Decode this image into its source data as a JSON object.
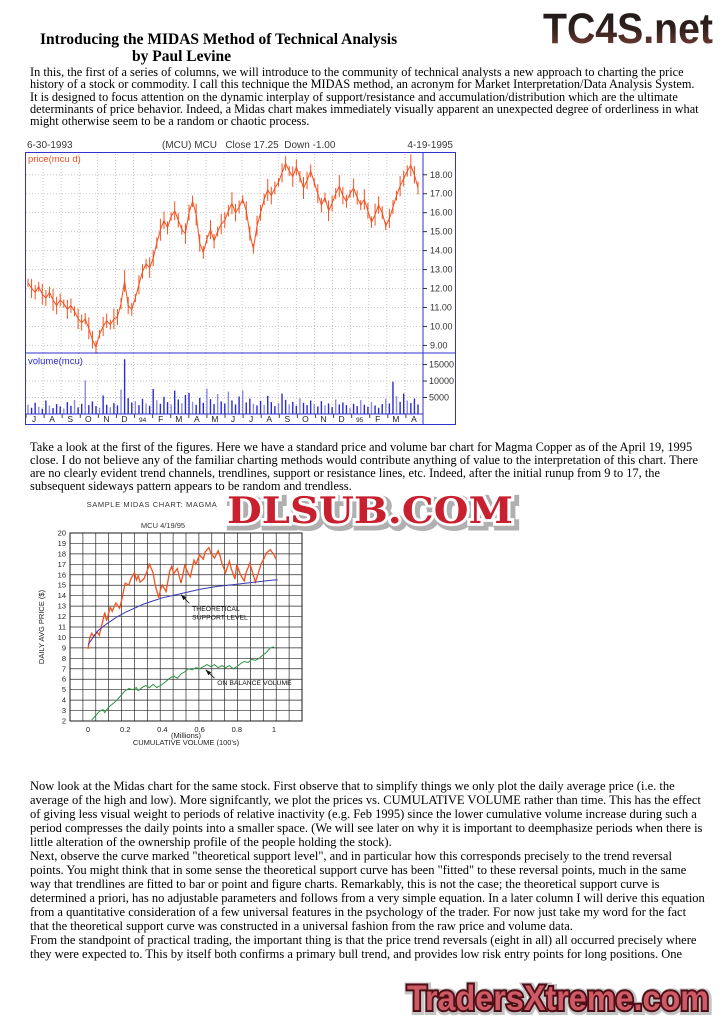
{
  "header": {
    "title": "Introducing the MIDAS Method of Technical Analysis",
    "byline": "by Paul Levine"
  },
  "logos": {
    "top": "TC4S.net",
    "watermark": "DLSUB.COM",
    "bottom": "TradersXtreme.com"
  },
  "paragraphs": {
    "p1": "In this, the first of a series of columns, we will introduce to the community of technical analysts a new approach to charting the price history of a stock or commodity. I call this technique the MIDAS method, an acronym for Market Interpretation/Data Analysis System. It is designed to focus attention on the dynamic interplay of support/resistance and accumulation/distribution which are the ultimate determinants of price behavior. Indeed, a Midas chart makes immediately visually apparent an unexpected degree of orderliness in what might otherwise seem to be a random or chaotic process.",
    "p2": "Take a look at the first of the figures. Here we have a standard price and volume bar chart for Magma Copper as of the April 19, 1995 close. I do not believe any of the familiar charting methods would contribute anything of value to the interpretation of this chart. There are no clearly evident trend channels, trendlines, support or resistance lines, etc. Indeed, after the initial runup from 9 to 17, the subsequent sideways pattern appears to be random and trendless.",
    "p3": "Now look at the Midas chart for the same stock. First observe that to simplify things we only plot the daily average price (i.e. the average of the high and low). More signifcantly, we plot the prices vs. CUMULATIVE VOLUME rather than time. This has the effect of giving less visual weight to periods of relative inactivity (e.g. Feb 1995) since the lower cumulative volume increase during such a period compresses the daily points into a smaller space. (We will see later on why it is important to deemphasize periods when there is little alteration of the ownership profile of the people holding the stock).",
    "p4": "Next, observe the curve marked \"theoretical support level\", and in particular how this corresponds precisely to the trend reversal points. You might think that in some sense the theoretical support curve has been \"fitted\" to these reversal points, much in the same way that trendlines are fitted to bar or point and figure charts. Remarkably, this is not the case; the theoretical support curve is determined a priori, has no adjustable parameters and follows from a very simple equation. In a later column I will derive this equation from a quantitative consideration of a few universal features in the psychology of the trader. For now just take my word for the fact that the theoretical support curve was constructed in a universal fashion from the raw price and  volume data.",
    "p5": "From the standpoint of practical trading, the important thing is that the price trend reversals (eight in all) all occurred precisely where they were expected to. This by itself both confirms a primary bull trend, and provides low risk entry points for long positions. One"
  },
  "chart_data": [
    {
      "type": "bar",
      "header_left": "6-30-1993",
      "header_center": "(MCU) MCU   Close 17.25  Down -1.00",
      "header_right": "4-19-1995",
      "price_label": "price(mcu d)",
      "volume_label": "volume(mcu)",
      "price_axis_ticks": [
        "18.00",
        "17.00",
        "16.00",
        "15.00",
        "14.00",
        "13.00",
        "12.00",
        "11.00",
        "10.00",
        "9.00"
      ],
      "volume_axis_ticks": [
        "15000",
        "10000",
        "5000"
      ],
      "x_labels": [
        "J",
        "A",
        "S",
        "O",
        "N",
        "D",
        "94",
        "F",
        "M",
        "A",
        "M",
        "J",
        "J",
        "A",
        "S",
        "O",
        "N",
        "D",
        "95",
        "F",
        "M",
        "A"
      ],
      "price_ylim": [
        8.6,
        19.2
      ],
      "volume_ylim": [
        0,
        18500
      ],
      "colors": {
        "price": "#f4511e",
        "volume": "#2b2bd0",
        "frame": "#3232cf",
        "grid": "#c9c9c9"
      },
      "price": [
        12.3,
        12.0,
        11.8,
        12.1,
        11.7,
        11.5,
        11.8,
        11.4,
        11.1,
        11.4,
        11.2,
        10.9,
        11.1,
        10.8,
        10.4,
        10.2,
        10.4,
        9.9,
        9.3,
        8.9,
        9.6,
        10.0,
        10.3,
        10.1,
        10.4,
        10.5,
        11.2,
        12.4,
        11.1,
        10.9,
        11.5,
        12.2,
        12.9,
        13.3,
        13.1,
        13.6,
        14.4,
        15.1,
        15.6,
        15.2,
        15.8,
        16.1,
        15.6,
        15.1,
        14.9,
        16.0,
        16.6,
        15.9,
        14.4,
        13.9,
        14.6,
        15.1,
        14.5,
        15.0,
        15.4,
        15.6,
        16.1,
        16.5,
        16.0,
        16.3,
        16.7,
        16.1,
        14.9,
        14.1,
        15.3,
        16.0,
        16.7,
        17.2,
        16.9,
        17.3,
        17.6,
        18.1,
        18.6,
        18.2,
        17.9,
        18.4,
        17.9,
        17.3,
        17.7,
        18.2,
        17.6,
        17.0,
        16.4,
        16.8,
        16.1,
        16.5,
        17.0,
        17.4,
        16.9,
        16.6,
        17.0,
        17.3,
        16.8,
        16.4,
        16.7,
        16.1,
        15.5,
        15.9,
        16.4,
        16.0,
        15.3,
        15.7,
        16.3,
        16.9,
        17.4,
        17.8,
        18.2,
        18.5,
        18.0,
        17.3
      ],
      "volume": [
        2800,
        1900,
        3400,
        2200,
        1600,
        4100,
        2600,
        1800,
        3000,
        2300,
        1700,
        3600,
        2500,
        4300,
        2000,
        3100,
        10200,
        2700,
        3800,
        2400,
        1900,
        5600,
        2800,
        2100,
        3300,
        2600,
        7400,
        16600,
        4800,
        3500,
        3900,
        2700,
        4600,
        3200,
        2500,
        7600,
        4200,
        3100,
        5200,
        3600,
        2900,
        7100,
        4400,
        3300,
        5800,
        6400,
        3700,
        2800,
        4900,
        3400,
        7700,
        4500,
        3000,
        6100,
        3800,
        3200,
        6800,
        4100,
        2900,
        5300,
        7200,
        3500,
        4700,
        3100,
        2600,
        4000,
        2800,
        5500,
        3600,
        2400,
        3300,
        6200,
        4300,
        2900,
        3700,
        2500,
        4800,
        3400,
        2700,
        4100,
        3000,
        2300,
        3900,
        2600,
        3200,
        2100,
        4400,
        2900,
        3500,
        2700,
        1800,
        3100,
        2400,
        4200,
        2800,
        2200,
        3600,
        2600,
        1900,
        3000,
        4600,
        3200,
        9800,
        5400,
        3700,
        6200,
        4100,
        3300,
        4700,
        2900
      ]
    },
    {
      "type": "line",
      "title": "SAMPLE MIDAS CHART: MAGMA",
      "subtitle": "MCU   4/19/95",
      "ylabel": "DAILY AVG PRICE ($)",
      "xlabel_line1": "(Millions)",
      "xlabel_line2": "CUMULATIVE VOLUME (100's)",
      "xlim": [
        -0.097,
        1.151
      ],
      "ylim": [
        2,
        20
      ],
      "x_ticks": [
        0,
        0.2,
        0.4,
        0.6,
        0.8,
        1
      ],
      "y_ticks": [
        20,
        19,
        18,
        17,
        16,
        15,
        14,
        13,
        12,
        11,
        10,
        9,
        8,
        7,
        6,
        5,
        4,
        3,
        2
      ],
      "series": [
        {
          "name": "daily average price",
          "color": "#f4511e",
          "width": 1.3,
          "x": [
            0.0,
            0.01,
            0.02,
            0.03,
            0.05,
            0.06,
            0.08,
            0.09,
            0.1,
            0.12,
            0.13,
            0.15,
            0.17,
            0.18,
            0.2,
            0.22,
            0.23,
            0.25,
            0.26,
            0.27,
            0.28,
            0.3,
            0.31,
            0.33,
            0.35,
            0.36,
            0.38,
            0.39,
            0.4,
            0.42,
            0.44,
            0.45,
            0.46,
            0.48,
            0.5,
            0.51,
            0.52,
            0.54,
            0.55,
            0.57,
            0.58,
            0.6,
            0.62,
            0.63,
            0.65,
            0.66,
            0.68,
            0.7,
            0.71,
            0.72,
            0.74,
            0.76,
            0.77,
            0.79,
            0.8,
            0.82,
            0.84,
            0.85,
            0.87,
            0.88,
            0.9,
            0.92,
            0.93,
            0.95,
            0.96,
            0.98,
            1.0,
            1.01
          ],
          "y": [
            8.9,
            10.0,
            10.4,
            10.1,
            10.5,
            10.2,
            11.6,
            12.4,
            11.6,
            12.9,
            12.5,
            13.3,
            12.8,
            13.5,
            15.2,
            15.0,
            15.6,
            16.2,
            15.5,
            15.9,
            15.3,
            15.6,
            16.0,
            17.0,
            16.2,
            15.1,
            13.8,
            14.6,
            15.0,
            14.4,
            16.4,
            16.8,
            16.1,
            16.6,
            15.2,
            16.0,
            16.9,
            16.1,
            15.8,
            17.4,
            17.0,
            17.9,
            17.5,
            18.2,
            18.6,
            18.1,
            17.6,
            18.3,
            17.8,
            17.1,
            16.2,
            17.3,
            16.6,
            15.6,
            17.0,
            16.0,
            15.4,
            16.2,
            17.1,
            16.5,
            15.3,
            16.4,
            17.0,
            17.7,
            18.1,
            18.4,
            17.9,
            17.5
          ]
        },
        {
          "name": "theoretical support level",
          "color": "#3a3ab2",
          "width": 1,
          "x": [
            0.0,
            0.05,
            0.1,
            0.15,
            0.2,
            0.25,
            0.3,
            0.35,
            0.4,
            0.45,
            0.5,
            0.55,
            0.6,
            0.65,
            0.7,
            0.75,
            0.8,
            0.85,
            0.9,
            0.95,
            1.0,
            1.02
          ],
          "y": [
            9.3,
            10.6,
            11.3,
            11.9,
            12.4,
            12.8,
            13.2,
            13.5,
            13.8,
            14.0,
            14.2,
            14.4,
            14.6,
            14.75,
            14.9,
            15.0,
            15.1,
            15.2,
            15.3,
            15.4,
            15.5,
            15.5
          ]
        },
        {
          "name": "on balance volume",
          "color": "#2f9342",
          "width": 1,
          "x": [
            0.02,
            0.04,
            0.06,
            0.08,
            0.09,
            0.11,
            0.13,
            0.15,
            0.17,
            0.19,
            0.2,
            0.22,
            0.24,
            0.26,
            0.27,
            0.29,
            0.31,
            0.33,
            0.35,
            0.37,
            0.38,
            0.4,
            0.42,
            0.44,
            0.46,
            0.48,
            0.5,
            0.52,
            0.54,
            0.56,
            0.58,
            0.6,
            0.62,
            0.64,
            0.66,
            0.68,
            0.7,
            0.72,
            0.74,
            0.76,
            0.78,
            0.8,
            0.82,
            0.84,
            0.86,
            0.88,
            0.9,
            0.92,
            0.94,
            0.96,
            0.98,
            1.0
          ],
          "y": [
            2.1,
            2.5,
            2.9,
            3.1,
            2.8,
            3.3,
            3.6,
            3.9,
            4.3,
            4.7,
            4.9,
            5.1,
            5.0,
            5.2,
            4.9,
            5.2,
            5.4,
            5.2,
            5.5,
            5.2,
            5.3,
            5.5,
            5.8,
            6.1,
            6.3,
            6.1,
            6.5,
            6.7,
            7.0,
            6.9,
            7.1,
            7.0,
            7.2,
            7.4,
            7.2,
            7.4,
            7.1,
            7.3,
            7.1,
            7.3,
            7.0,
            7.2,
            7.5,
            7.7,
            7.6,
            7.9,
            7.8,
            8.0,
            8.3,
            8.6,
            9.0,
            9.1
          ]
        }
      ],
      "annotations": [
        {
          "label": [
            "THEORETICAL",
            "SUPPORT LEVEL"
          ],
          "text_xy": [
            0.56,
            12.55
          ],
          "arrow_from": [
            0.545,
            13.25
          ],
          "arrow_to": [
            0.5,
            14.1
          ]
        },
        {
          "label": [
            "ON BALANCE VOLUME"
          ],
          "text_xy": [
            0.695,
            5.45
          ],
          "arrow_from": [
            0.68,
            6.1
          ],
          "arrow_to": [
            0.633,
            6.9
          ]
        }
      ]
    }
  ]
}
